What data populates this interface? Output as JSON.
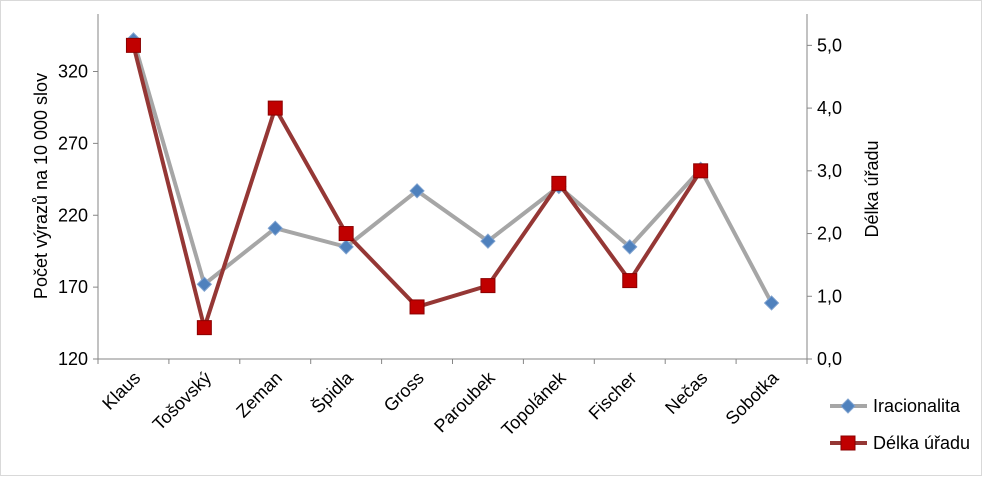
{
  "chart_data": {
    "type": "line",
    "categories": [
      "Klaus",
      "Tošovský",
      "Zeman",
      "Špidla",
      "Gross",
      "Paroubek",
      "Topolánek",
      "Fischer",
      "Nečas",
      "Sobotka"
    ],
    "ylabel": "Počet výrazů na 10 000 slov",
    "y2label": "Délka úřadu",
    "ylim": [
      120,
      360
    ],
    "y2lim": [
      0,
      5.5
    ],
    "yticks": [
      "120",
      "170",
      "220",
      "270",
      "320"
    ],
    "yticks_values": [
      120,
      170,
      220,
      270,
      320
    ],
    "y2ticks": [
      "0,0",
      "1,0",
      "2,0",
      "3,0",
      "4,0",
      "5,0"
    ],
    "y2ticks_values": [
      0,
      1,
      2,
      3,
      4,
      5
    ],
    "legend_position": "right-bottom",
    "grid": false,
    "series": [
      {
        "name": "Iracionalita",
        "axis": "left",
        "color": "#a6a6a6",
        "marker": "diamond",
        "marker_color": "#4f81bd",
        "values": [
          342,
          172,
          211,
          198,
          237,
          202,
          240,
          198,
          252,
          159
        ]
      },
      {
        "name": "Délka úřadu",
        "axis": "right",
        "color": "#953735",
        "marker": "square",
        "marker_color": "#c00000",
        "values": [
          5.0,
          0.5,
          4.0,
          2.0,
          0.83,
          1.17,
          2.8,
          1.25,
          3.0,
          null
        ]
      }
    ]
  }
}
